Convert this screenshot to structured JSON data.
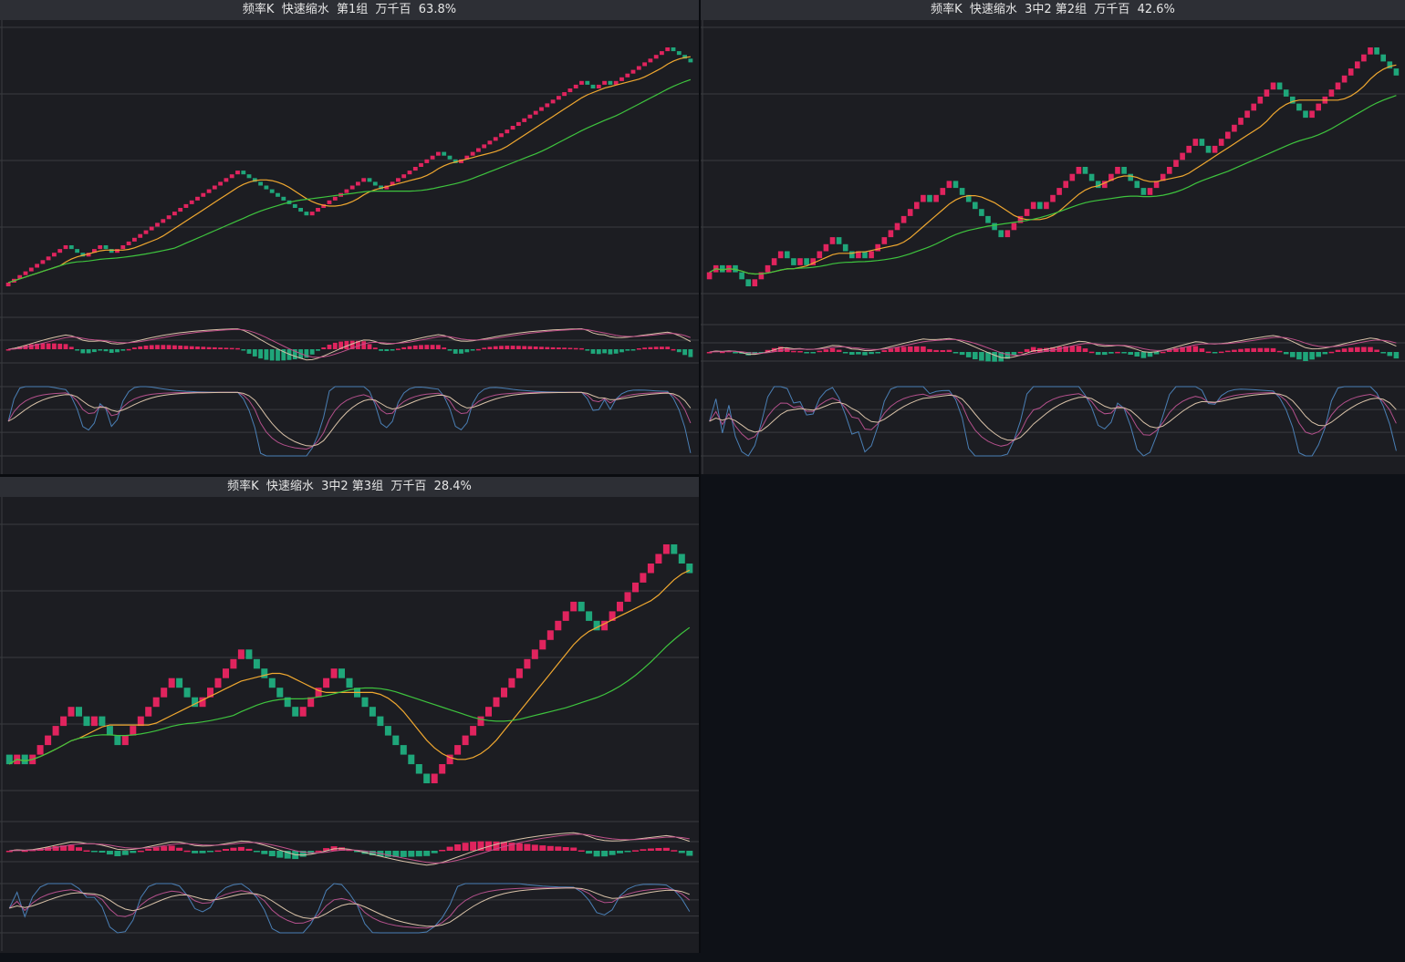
{
  "colors": {
    "up": "#e0245e",
    "down": "#1fa67a",
    "ma_short": "#f0a830",
    "ma_long": "#3ec43e",
    "macd_dif": "#d9c2a8",
    "macd_dea": "#c0508a",
    "kdj_k": "#4a7fb5",
    "kdj_d": "#d9c2a8",
    "kdj_j": "#b4508c",
    "grid": "#3a3b40",
    "panel_bg": "#1c1d22",
    "header_bg": "#2d2f35"
  },
  "panels": [
    {
      "title": "频率K  快速缩水  第1组  万千百  63.8%"
    },
    {
      "title": "频率K  快速缩水  3中2 第2组  万千百  42.6%"
    },
    {
      "title": "频率K  快速缩水  3中2 第3组  万千百  28.4%"
    }
  ],
  "chart_data": [
    {
      "type": "candlestick",
      "title": "频率K  快速缩水  第1组  万千百  63.8%",
      "indicators": [
        "MA short",
        "MA long",
        "MACD",
        "KDJ"
      ],
      "moves": [
        1,
        1,
        1,
        1,
        1,
        1,
        1,
        1,
        1,
        1,
        1,
        -1,
        -1,
        -1,
        1,
        1,
        1,
        -1,
        -1,
        1,
        1,
        1,
        1,
        1,
        1,
        1,
        1,
        1,
        1,
        1,
        1,
        1,
        1,
        1,
        1,
        1,
        1,
        1,
        1,
        1,
        1,
        -1,
        -1,
        -1,
        -1,
        -1,
        -1,
        -1,
        -1,
        -1,
        -1,
        -1,
        -1,
        1,
        1,
        1,
        1,
        1,
        1,
        1,
        1,
        1,
        1,
        -1,
        -1,
        -1,
        1,
        1,
        1,
        1,
        1,
        1,
        1,
        1,
        1,
        1,
        -1,
        -1,
        -1,
        1,
        1,
        1,
        1,
        1,
        1,
        1,
        1,
        1,
        1,
        1,
        1,
        1,
        1,
        1,
        1,
        1,
        1,
        1,
        1,
        1,
        1,
        -1,
        -1,
        1,
        1,
        -1,
        1,
        1,
        1,
        1,
        1,
        1,
        1,
        1,
        1,
        1,
        -1,
        -1,
        -1,
        -1
      ],
      "macd_hist_sign": [
        "+ for most bars",
        "- around middle drawdown"
      ],
      "grid": true
    },
    {
      "type": "candlestick",
      "title": "频率K  快速缩水  3中2 第2组  万千百  42.6%",
      "indicators": [
        "MA short",
        "MA long",
        "MACD",
        "KDJ"
      ],
      "moves": [
        1,
        1,
        -1,
        1,
        -1,
        -1,
        -1,
        1,
        1,
        1,
        1,
        1,
        -1,
        -1,
        1,
        -1,
        1,
        1,
        1,
        1,
        -1,
        -1,
        -1,
        1,
        -1,
        1,
        1,
        1,
        1,
        1,
        1,
        1,
        1,
        1,
        -1,
        1,
        1,
        1,
        -1,
        -1,
        -1,
        -1,
        -1,
        -1,
        -1,
        -1,
        1,
        1,
        1,
        1,
        1,
        -1,
        1,
        1,
        1,
        1,
        1,
        1,
        -1,
        -1,
        -1,
        1,
        1,
        1,
        -1,
        -1,
        -1,
        -1,
        1,
        1,
        1,
        1,
        1,
        1,
        1,
        1,
        -1,
        -1,
        1,
        1,
        1,
        1,
        1,
        1,
        1,
        1,
        1,
        1,
        -1,
        -1,
        -1,
        -1,
        -1,
        1,
        1,
        1,
        1,
        1,
        1,
        1,
        1,
        1,
        1,
        -1,
        -1,
        -1,
        -1
      ],
      "grid": true
    },
    {
      "type": "candlestick",
      "title": "频率K  快速缩水  3中2 第3组  万千百  28.4%",
      "indicators": [
        "MA short",
        "MA long",
        "MACD",
        "KDJ"
      ],
      "moves": [
        -1,
        1,
        -1,
        1,
        1,
        1,
        1,
        1,
        1,
        -1,
        -1,
        1,
        -1,
        -1,
        -1,
        1,
        1,
        1,
        1,
        1,
        1,
        1,
        -1,
        -1,
        -1,
        1,
        1,
        1,
        1,
        1,
        1,
        -1,
        -1,
        -1,
        -1,
        -1,
        -1,
        -1,
        1,
        1,
        1,
        1,
        1,
        -1,
        -1,
        -1,
        -1,
        -1,
        -1,
        -1,
        -1,
        -1,
        -1,
        -1,
        -1,
        1,
        1,
        1,
        1,
        1,
        1,
        1,
        1,
        1,
        1,
        1,
        1,
        1,
        1,
        1,
        1,
        1,
        1,
        1,
        -1,
        -1,
        -1,
        1,
        1,
        1,
        1,
        1,
        1,
        1,
        1,
        1,
        -1,
        -1,
        -1
      ],
      "grid": true
    }
  ]
}
